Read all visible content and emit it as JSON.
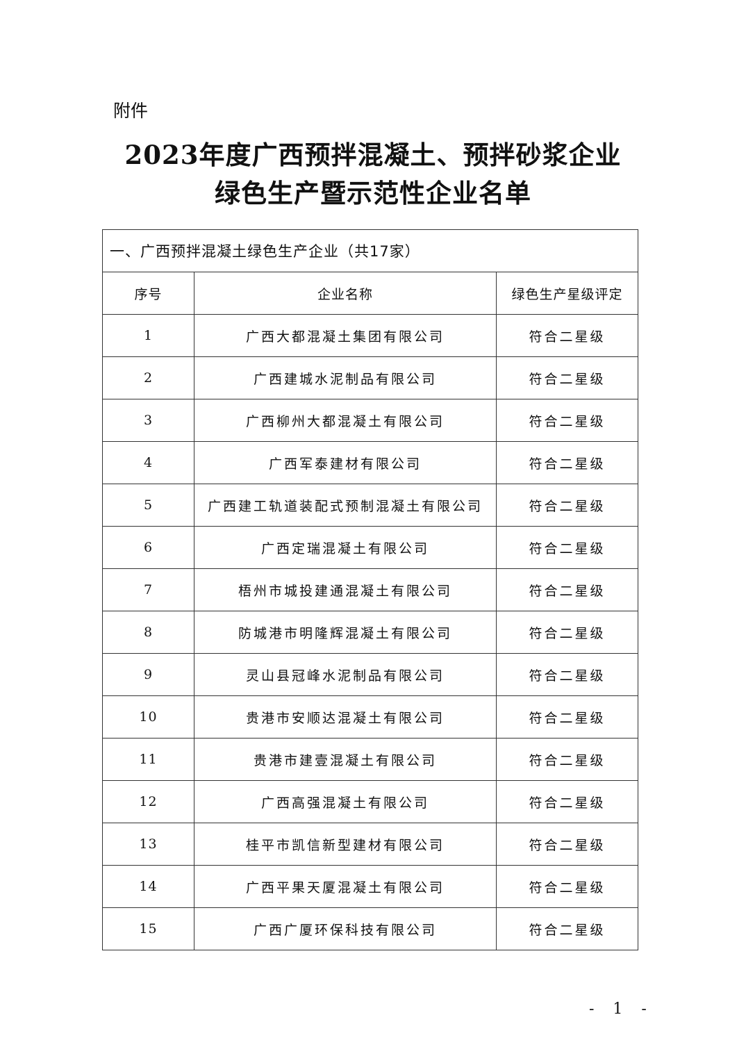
{
  "attachment_label": "附件",
  "title_line1": "2023年度广西预拌混凝土、预拌砂浆企业",
  "title_line2": "绿色生产暨示范性企业名单",
  "section_title": "一、广西预拌混凝土绿色生产企业（共17家）",
  "columns": [
    "序号",
    "企业名称",
    "绿色生产星级评定"
  ],
  "rows": [
    {
      "no": "1",
      "name": "广西大都混凝土集团有限公司",
      "rating": "符合二星级"
    },
    {
      "no": "2",
      "name": "广西建城水泥制品有限公司",
      "rating": "符合二星级"
    },
    {
      "no": "3",
      "name": "广西柳州大都混凝土有限公司",
      "rating": "符合二星级"
    },
    {
      "no": "4",
      "name": "广西军泰建材有限公司",
      "rating": "符合二星级"
    },
    {
      "no": "5",
      "name": "广西建工轨道装配式预制混凝土有限公司",
      "rating": "符合二星级"
    },
    {
      "no": "6",
      "name": "广西定瑞混凝土有限公司",
      "rating": "符合二星级"
    },
    {
      "no": "7",
      "name": "梧州市城投建通混凝土有限公司",
      "rating": "符合二星级"
    },
    {
      "no": "8",
      "name": "防城港市明隆辉混凝土有限公司",
      "rating": "符合二星级"
    },
    {
      "no": "9",
      "name": "灵山县冠峰水泥制品有限公司",
      "rating": "符合二星级"
    },
    {
      "no": "10",
      "name": "贵港市安顺达混凝土有限公司",
      "rating": "符合二星级"
    },
    {
      "no": "11",
      "name": "贵港市建壹混凝土有限公司",
      "rating": "符合二星级"
    },
    {
      "no": "12",
      "name": "广西高强混凝土有限公司",
      "rating": "符合二星级"
    },
    {
      "no": "13",
      "name": "桂平市凯信新型建材有限公司",
      "rating": "符合二星级"
    },
    {
      "no": "14",
      "name": "广西平果天厦混凝土有限公司",
      "rating": "符合二星级"
    },
    {
      "no": "15",
      "name": "广西广厦环保科技有限公司",
      "rating": "符合二星级"
    }
  ],
  "page_number": "- 1 -"
}
